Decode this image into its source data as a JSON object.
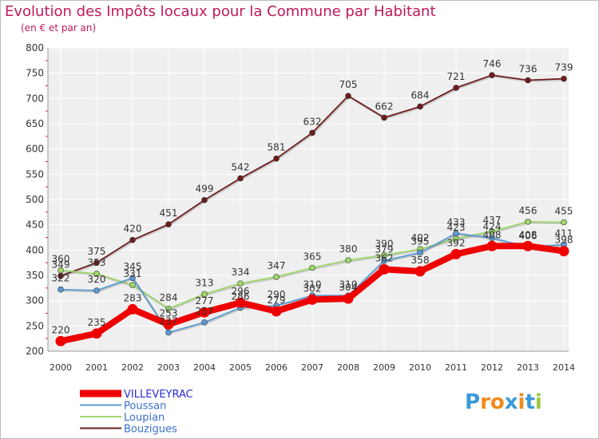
{
  "title": "Evolution des Impôts locaux pour la Commune par Habitant",
  "subtitle": "(en € et par an)",
  "logo": "Proxiti",
  "chart_data": {
    "type": "line",
    "title": "Evolution des Impôts locaux pour la Commune par Habitant",
    "subtitle": "(en € et par an)",
    "xlabel": "",
    "ylabel": "",
    "x": [
      "2000",
      "2001",
      "2002",
      "2003",
      "2004",
      "2005",
      "2006",
      "2007",
      "2008",
      "2009",
      "2010",
      "2011",
      "2012",
      "2013",
      "2014"
    ],
    "ylim": [
      200,
      800
    ],
    "yticks": [
      200,
      250,
      300,
      350,
      400,
      450,
      500,
      550,
      600,
      650,
      700,
      750,
      800
    ],
    "grid": true,
    "legend": "bottom-left",
    "series": [
      {
        "name": "VILLEVEYRAC",
        "color": "#ee0000",
        "values": [
          220,
          235,
          283,
          253,
          277,
          296,
          279,
          302,
          304,
          362,
          358,
          392,
          408,
          408,
          398
        ]
      },
      {
        "name": "Poussan",
        "color": "#5b9ad4",
        "values": [
          322,
          320,
          345,
          237,
          257,
          286,
          290,
          310,
          310,
          379,
          395,
          433,
          424,
          406,
          411
        ]
      },
      {
        "name": "Loupian",
        "color": "#9ed86a",
        "values": [
          360,
          353,
          331,
          284,
          313,
          334,
          347,
          365,
          380,
          390,
          402,
          423,
          437,
          456,
          455
        ]
      },
      {
        "name": "Bouzigues",
        "color": "#6e1c1c",
        "values": [
          349,
          375,
          420,
          451,
          499,
          542,
          581,
          632,
          705,
          662,
          684,
          721,
          746,
          736,
          739
        ]
      }
    ],
    "labels": {
      "VILLEVEYRAC": [
        "220",
        "235",
        "283",
        "253",
        "277",
        "296",
        "279",
        "302",
        "304",
        "362",
        "358",
        "392",
        "408",
        "408",
        "398"
      ],
      "Poussan": [
        "322",
        "320",
        "345",
        "237",
        "257",
        "286",
        "290",
        "310",
        "310",
        "379",
        "395",
        "433",
        "424",
        "406",
        "411"
      ],
      "Loupian": [
        "360",
        "353",
        "331",
        "284",
        "313",
        "334",
        "347",
        "365",
        "380",
        "390",
        "402",
        "423",
        "437",
        "456",
        "455"
      ],
      "Bouzigues": [
        "349",
        "375",
        "420",
        "451",
        "499",
        "542",
        "581",
        "632",
        "705",
        "662",
        "684",
        "721",
        "746",
        "736",
        "739"
      ]
    }
  }
}
